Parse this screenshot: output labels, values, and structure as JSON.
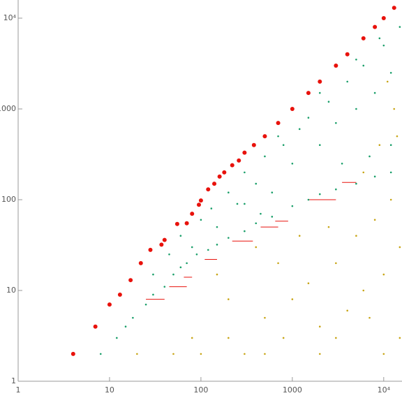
{
  "chart_data": {
    "type": "scatter",
    "log_x": true,
    "log_y": true,
    "xlim": [
      1,
      15850
    ],
    "ylim": [
      1,
      15850
    ],
    "xticks": [
      1,
      10,
      100,
      1000,
      {
        "value": 10000,
        "label": "10⁴"
      }
    ],
    "yticks": [
      1,
      10,
      100,
      1000,
      {
        "value": 10000,
        "label": "10⁴"
      }
    ],
    "series": [
      {
        "color": "#e8120c",
        "marker": "large",
        "x": [
          4,
          7,
          10,
          13,
          17,
          22,
          28,
          37,
          40,
          55,
          70,
          80,
          95,
          100,
          120,
          140,
          160,
          180,
          220,
          260,
          300,
          380,
          500,
          700,
          1000,
          1500,
          2000,
          3000,
          4000,
          6000,
          8000,
          10000,
          13000
        ],
        "values": [
          2,
          4,
          7,
          9,
          13,
          20,
          28,
          32,
          36,
          54,
          55,
          70,
          88,
          98,
          130,
          150,
          180,
          200,
          240,
          270,
          330,
          400,
          500,
          700,
          1000,
          1500,
          2000,
          3000,
          4000,
          6000,
          8000,
          10000,
          13000
        ]
      },
      {
        "color": "#1a9f6a",
        "marker": "small",
        "x": [
          8,
          12,
          15,
          18,
          25,
          30,
          40,
          50,
          60,
          70,
          90,
          120,
          150,
          200,
          300,
          400,
          600,
          1000,
          1500,
          2000,
          3000,
          5000,
          8000,
          12000,
          30,
          45,
          60,
          80,
          100,
          130,
          150,
          200,
          250,
          300,
          400,
          500,
          600,
          800,
          1000,
          1200,
          1500,
          2000,
          2500,
          3000,
          4000,
          5000,
          6000,
          8000,
          10000,
          12000,
          15000,
          2000,
          5000,
          9000,
          700,
          300,
          450,
          3500,
          7000,
          12000
        ],
        "values": [
          2,
          3,
          4,
          5,
          7,
          9,
          11,
          15,
          18,
          20,
          25,
          28,
          32,
          38,
          45,
          55,
          65,
          85,
          100,
          115,
          130,
          150,
          180,
          200,
          15,
          25,
          40,
          30,
          60,
          80,
          50,
          120,
          90,
          200,
          150,
          300,
          120,
          400,
          250,
          600,
          800,
          400,
          1200,
          700,
          2000,
          1000,
          3000,
          1500,
          5000,
          2500,
          8000,
          1500,
          3500,
          6000,
          500,
          90,
          70,
          250,
          300,
          400
        ]
      },
      {
        "color": "#c8a516",
        "marker": "small",
        "x": [
          100,
          200,
          300,
          500,
          800,
          1000,
          1500,
          2000,
          3000,
          4000,
          5000,
          6000,
          8000,
          10000,
          12000,
          15000,
          2500,
          6000,
          9000,
          13000,
          11000,
          14000,
          700,
          400,
          1200,
          15000,
          10000,
          7000,
          500,
          2000,
          3000,
          50,
          20,
          80,
          200,
          150
        ],
        "values": [
          2,
          3,
          2,
          5,
          3,
          8,
          12,
          4,
          20,
          6,
          40,
          10,
          60,
          15,
          100,
          30,
          50,
          200,
          400,
          1000,
          2000,
          500,
          20,
          30,
          40,
          3,
          2,
          5,
          2,
          2,
          3,
          2,
          2,
          3,
          8,
          15
        ]
      }
    ],
    "segments": {
      "color": "#e8120c",
      "x_start": [
        25,
        45,
        65,
        110,
        220,
        450,
        650,
        1500,
        3500
      ],
      "x_end": [
        40,
        70,
        80,
        150,
        370,
        700,
        900,
        3000,
        5000
      ],
      "values": [
        8,
        11,
        14,
        22,
        35,
        50,
        58,
        100,
        155
      ]
    }
  }
}
